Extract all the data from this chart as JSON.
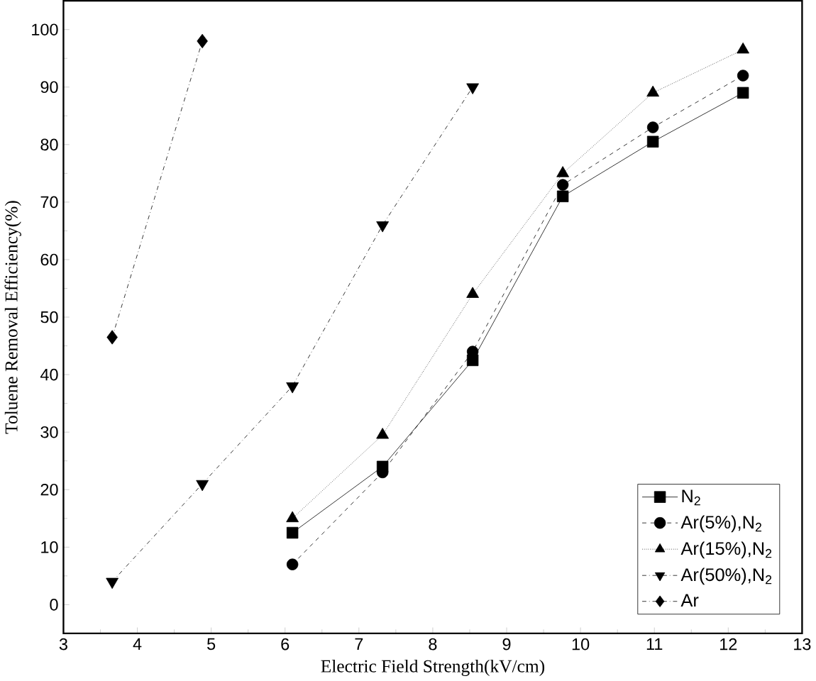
{
  "chart_data": {
    "type": "line",
    "xlabel": "Electric Field Strength(kV/cm)",
    "ylabel": "Toluene Removal Efficiency(%)",
    "xlim": [
      3,
      13
    ],
    "ylim": [
      -5,
      105
    ],
    "xticks": [
      3,
      4,
      5,
      6,
      7,
      8,
      9,
      10,
      11,
      12,
      13
    ],
    "yticks": [
      0,
      10,
      20,
      30,
      40,
      50,
      60,
      70,
      80,
      90,
      100
    ],
    "legend": "bottom right",
    "grid": false,
    "series": [
      {
        "name": "N$_{2}$",
        "color": "#000000",
        "marker": "square",
        "line_style": "solid",
        "x": [
          6.1,
          7.32,
          8.54,
          9.76,
          10.98,
          12.2
        ],
        "values": [
          12.5,
          24,
          42.5,
          71,
          80.5,
          89
        ]
      },
      {
        "name": "Ar(5%),N$_{2}$",
        "color": "#000000",
        "marker": "circle",
        "line_style": "dashed",
        "x": [
          6.1,
          7.32,
          8.54,
          9.76,
          10.98,
          12.2
        ],
        "values": [
          7,
          23,
          44,
          73,
          83,
          92
        ]
      },
      {
        "name": "Ar(15%),N$_{2}$",
        "color": "#000000",
        "marker": "triangle",
        "line_style": "dotted",
        "x": [
          6.1,
          7.32,
          8.54,
          9.76,
          10.98,
          12.2
        ],
        "values": [
          15,
          29.5,
          54,
          75,
          89,
          96.5
        ]
      },
      {
        "name": "Ar(50%),N$_{2}$",
        "color": "#000000",
        "marker": "triangle down",
        "line_style": "dashdotted",
        "x": [
          3.66,
          4.88,
          6.1,
          7.32,
          8.54
        ],
        "values": [
          4,
          21,
          38,
          66,
          90
        ]
      },
      {
        "name": "Ar",
        "color": "#000000",
        "marker": "diamond",
        "line_style": "dashdotted",
        "x": [
          3.66,
          4.88
        ],
        "values": [
          46.5,
          98
        ]
      }
    ]
  }
}
